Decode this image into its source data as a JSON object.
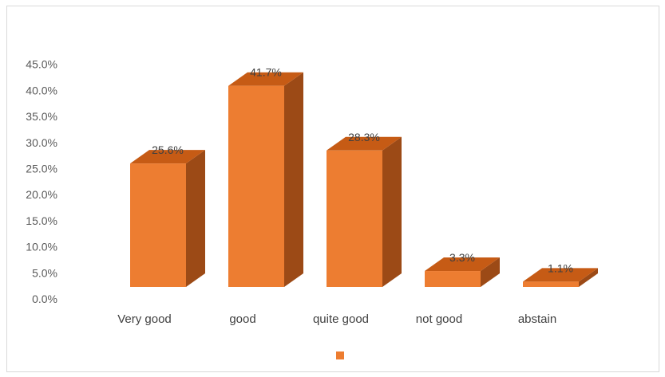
{
  "chart_data": {
    "type": "bar",
    "style": "3d-column",
    "categories": [
      "Very good",
      "good",
      "quite good",
      "not good",
      "abstain"
    ],
    "series": [
      {
        "values": [
          25.6,
          41.7,
          28.3,
          3.3,
          1.1
        ]
      }
    ],
    "data_labels": [
      "25.6%",
      "41.7%",
      "28.3%",
      "3.3%",
      "1.1%"
    ],
    "y_ticks": [
      "0.0%",
      "5.0%",
      "10.0%",
      "15.0%",
      "20.0%",
      "25.0%",
      "30.0%",
      "35.0%",
      "40.0%",
      "45.0%"
    ],
    "ylim": [
      0,
      45
    ],
    "grid": false,
    "legend": "bottom",
    "colors": {
      "front": "#ed7d31",
      "top": "#c65b15",
      "side": "#9c4a16"
    }
  }
}
